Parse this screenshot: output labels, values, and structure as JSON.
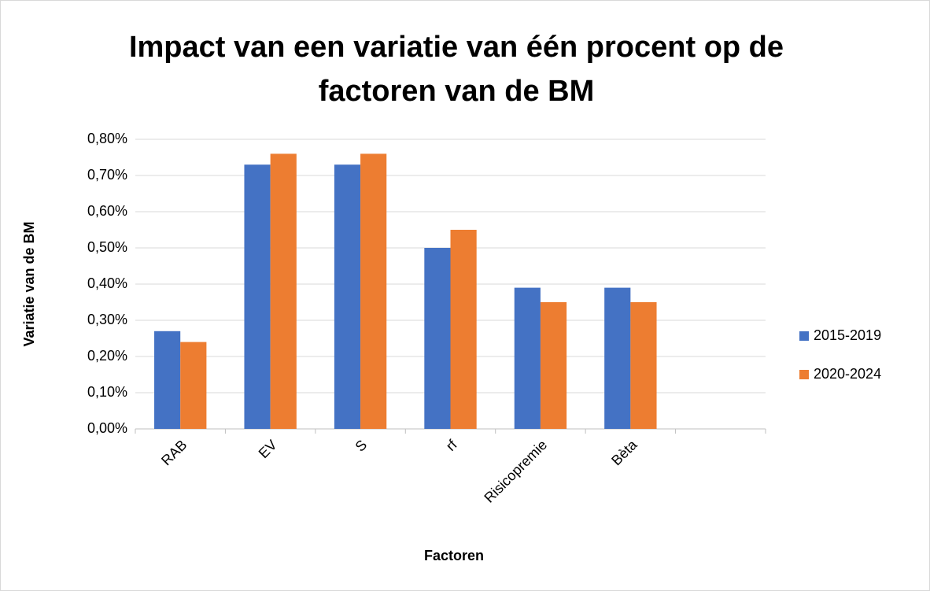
{
  "chart_data": {
    "type": "bar",
    "title": [
      "Impact van een variatie van één procent op de",
      "factoren van de BM"
    ],
    "x_label": "Factoren",
    "y_label": "Variatie van de BM",
    "categories": [
      "RAB",
      "EV",
      "S",
      "rf",
      "Risicopremie",
      "Bèta",
      null
    ],
    "series": [
      {
        "name": "2015-2019",
        "color": "#4472c4",
        "values": [
          0.27,
          0.73,
          0.73,
          0.5,
          0.39,
          0.39,
          null
        ]
      },
      {
        "name": "2020-2024",
        "color": "#ed7d31",
        "values": [
          0.24,
          0.76,
          0.76,
          0.55,
          0.35,
          0.35,
          null
        ]
      }
    ],
    "ylim": [
      0,
      0.8
    ],
    "yticks": [
      {
        "value": 0,
        "label": "0,00%"
      },
      {
        "value": 0.1,
        "label": "0,10%"
      },
      {
        "value": 0.2,
        "label": "0,20%"
      },
      {
        "value": 0.3,
        "label": "0,30%"
      },
      {
        "value": 0.4,
        "label": "0,40%"
      },
      {
        "value": 0.5,
        "label": "0,50%"
      },
      {
        "value": 0.6,
        "label": "0,60%"
      },
      {
        "value": 0.7,
        "label": "0,70%"
      },
      {
        "value": 0.8,
        "label": "0,80%"
      }
    ],
    "grid": true,
    "legend": "right"
  }
}
